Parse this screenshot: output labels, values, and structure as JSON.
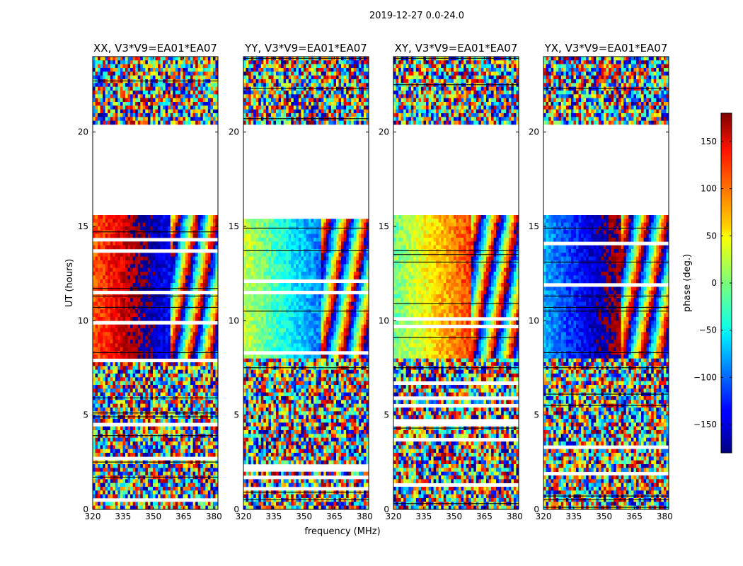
{
  "figure": {
    "suptitle": "2019-12-27 0.0-24.0"
  },
  "chart_data": {
    "type": "heatmap",
    "title": "2019-12-27 0.0-24.0",
    "xlabel": "frequency (MHz)",
    "ylabel": "UT (hours)",
    "xlim": [
      320,
      382
    ],
    "ylim": [
      0,
      24
    ],
    "x_ticks": [
      320,
      335,
      350,
      365,
      380
    ],
    "y_ticks": [
      0,
      5,
      10,
      15,
      20
    ],
    "panels": [
      {
        "title": "XX, V3*V9=EA01*EA07",
        "polarization": "XX"
      },
      {
        "title": "YY, V3*V9=EA01*EA07",
        "polarization": "YY"
      },
      {
        "title": "XY, V3*V9=EA01*EA07",
        "polarization": "XY"
      },
      {
        "title": "YX, V3*V9=EA01*EA07",
        "polarization": "YX"
      }
    ],
    "flagged_gap_hours": [
      [
        20.5,
        15.6
      ]
    ],
    "colorbar": {
      "label": "phase (deg.)",
      "vmin": -180,
      "vmax": 180,
      "ticks": [
        -150,
        -100,
        -50,
        0,
        50,
        100,
        150
      ],
      "tick_labels": [
        "−150",
        "−100",
        "−50",
        "0",
        "50",
        "100",
        "150"
      ],
      "colormap": "jet"
    }
  }
}
